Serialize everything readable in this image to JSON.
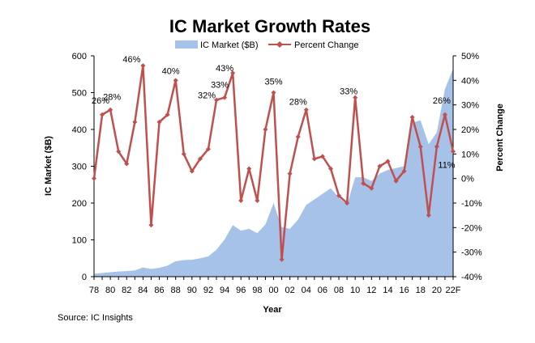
{
  "source_text": "Source:  IC Insights",
  "colors": {
    "area": "#a6c2e8",
    "line": "#c0504d",
    "axis": "#000000"
  },
  "chart_data": {
    "type": "area+line",
    "title": "IC Market Growth Rates",
    "xlabel": "Year",
    "ylabel_left": "IC Market ($B)",
    "ylabel_right": "Percent Change",
    "ylim_left": [
      0,
      600
    ],
    "ylim_right": [
      -40,
      50
    ],
    "left_ticks": [
      "0",
      "100",
      "200",
      "300",
      "400",
      "500",
      "600"
    ],
    "right_ticks": [
      "-40%",
      "-30%",
      "-20%",
      "-10%",
      "0%",
      "10%",
      "20%",
      "30%",
      "40%",
      "50%"
    ],
    "x_tick_labels": [
      "78",
      "80",
      "82",
      "84",
      "86",
      "88",
      "90",
      "92",
      "94",
      "96",
      "98",
      "00",
      "02",
      "04",
      "06",
      "08",
      "10",
      "12",
      "14",
      "16",
      "18",
      "20",
      "22F"
    ],
    "legend_position": "top",
    "grid": false,
    "years": [
      1978,
      1979,
      1980,
      1981,
      1982,
      1983,
      1984,
      1985,
      1986,
      1987,
      1988,
      1989,
      1990,
      1991,
      1992,
      1993,
      1994,
      1995,
      1996,
      1997,
      1998,
      1999,
      2000,
      2001,
      2002,
      2003,
      2004,
      2005,
      2006,
      2007,
      2008,
      2009,
      2010,
      2011,
      2012,
      2013,
      2014,
      2015,
      2016,
      2017,
      2018,
      2019,
      2020,
      2021,
      2022
    ],
    "series": [
      {
        "name": "IC Market ($B)",
        "type": "area",
        "axis": "left",
        "values": [
          8,
          10,
          12,
          14,
          15,
          17,
          25,
          21,
          24,
          30,
          42,
          45,
          46,
          50,
          55,
          73,
          101,
          140,
          125,
          130,
          118,
          142,
          200,
          135,
          130,
          155,
          195,
          210,
          225,
          240,
          215,
          195,
          270,
          270,
          260,
          280,
          290,
          295,
          300,
          418,
          425,
          360,
          392,
          510,
          565
        ]
      },
      {
        "name": "Percent Change",
        "type": "line",
        "axis": "right",
        "values": [
          0,
          26,
          28,
          11,
          6,
          23,
          46,
          -19,
          23,
          26,
          40,
          10,
          3,
          8,
          12,
          32,
          33,
          43,
          -9,
          4,
          -9,
          20,
          35,
          -33,
          2,
          17,
          28,
          8,
          9,
          4,
          -7,
          -10,
          33,
          -2,
          -4,
          5,
          7,
          -1,
          3,
          25,
          13,
          -15,
          13,
          26,
          11
        ]
      }
    ],
    "annotations": [
      {
        "year": 1979,
        "text": "26%"
      },
      {
        "year": 1980,
        "text": "28%"
      },
      {
        "year": 1984,
        "text": "46%"
      },
      {
        "year": 1988,
        "text": "40%"
      },
      {
        "year": 1993,
        "text": "32%"
      },
      {
        "year": 1994,
        "text": "33%"
      },
      {
        "year": 1995,
        "text": "43%"
      },
      {
        "year": 2000,
        "text": "35%"
      },
      {
        "year": 2004,
        "text": "28%"
      },
      {
        "year": 2010,
        "text": "33%"
      },
      {
        "year": 2021,
        "text": "26%"
      },
      {
        "year": 2022,
        "text": "11%"
      }
    ]
  }
}
